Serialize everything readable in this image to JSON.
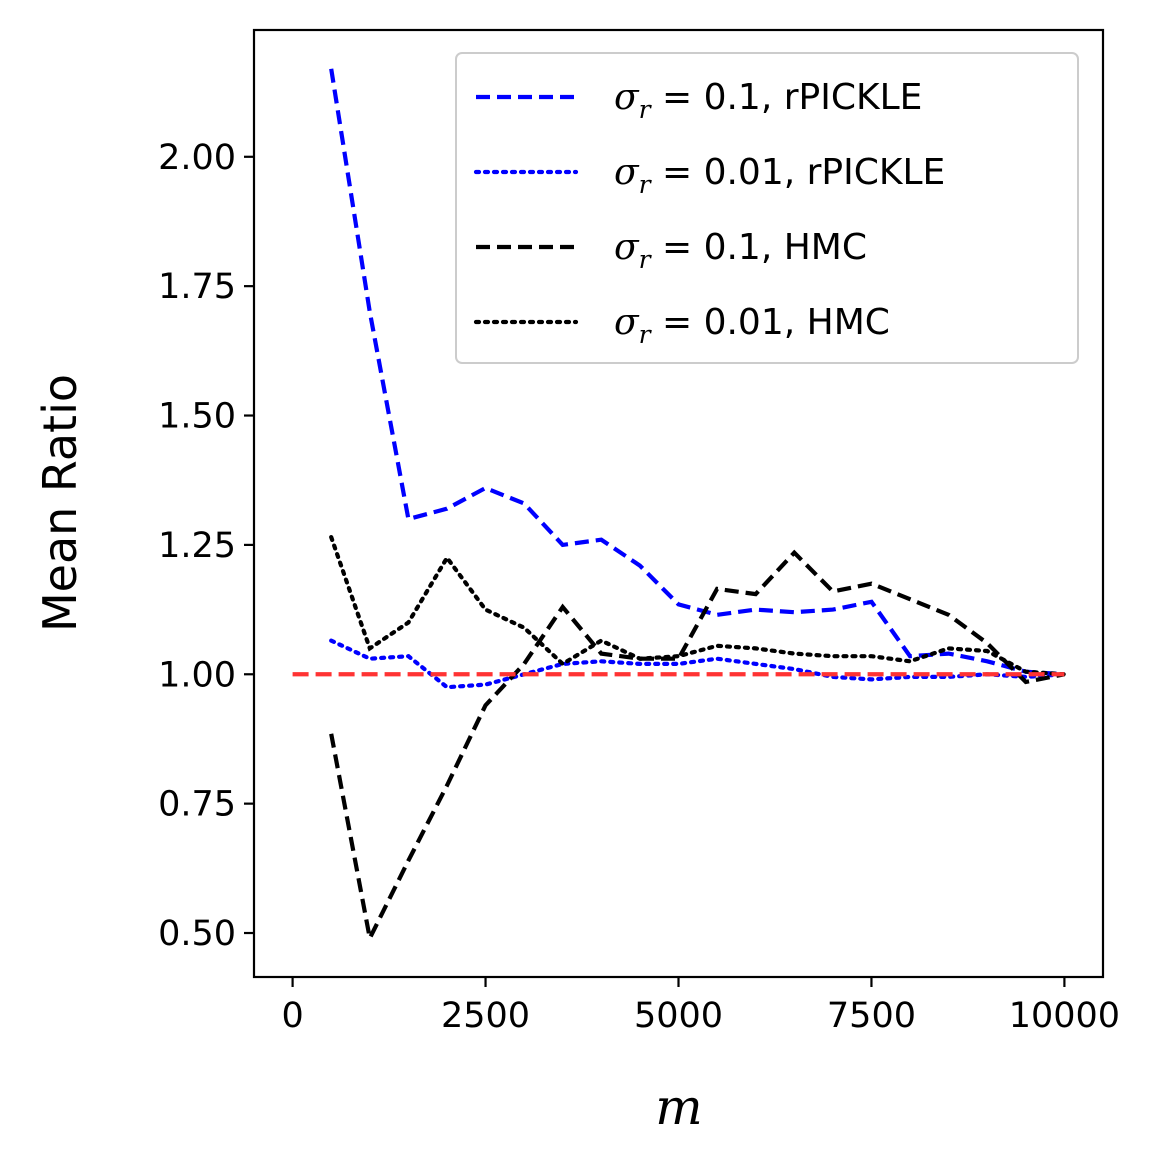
{
  "chart_data": {
    "type": "line",
    "title": "",
    "xlabel": "m",
    "ylabel": "Mean Ratio",
    "xlim": [
      -500,
      10500
    ],
    "ylim": [
      0.415,
      2.245
    ],
    "xticks": [
      0,
      2500,
      5000,
      7500,
      10000
    ],
    "xtick_labels": [
      "0",
      "2500",
      "5000",
      "7500",
      "10000"
    ],
    "yticks": [
      0.5,
      0.75,
      1.0,
      1.25,
      1.5,
      1.75,
      2.0
    ],
    "ytick_labels": [
      "0.50",
      "0.75",
      "1.00",
      "1.25",
      "1.50",
      "1.75",
      "2.00"
    ],
    "grid": false,
    "legend_position": "top-right",
    "reference_line": {
      "y": 1.0,
      "x_range": [
        0,
        10000
      ],
      "color": "#ff3333",
      "style": "dashed"
    },
    "series": [
      {
        "name": "σ_r = 0.1, rPICKLE",
        "legend": {
          "symbol": "σ",
          "sub": "r",
          "rest": " = 0.1, rPICKLE"
        },
        "color": "#0000ff",
        "style": "dashed",
        "x": [
          500,
          1000,
          1500,
          2000,
          2500,
          3000,
          3500,
          4000,
          4500,
          5000,
          5500,
          6000,
          6500,
          7000,
          7500,
          8000,
          8500,
          9000,
          9500,
          10000
        ],
        "y": [
          2.17,
          1.7,
          1.3,
          1.32,
          1.36,
          1.33,
          1.25,
          1.26,
          1.21,
          1.135,
          1.115,
          1.125,
          1.12,
          1.125,
          1.14,
          1.035,
          1.04,
          1.025,
          1.005,
          1.0
        ]
      },
      {
        "name": "σ_r = 0.01, rPICKLE",
        "legend": {
          "symbol": "σ",
          "sub": "r",
          "rest": " = 0.01, rPICKLE"
        },
        "color": "#0000ff",
        "style": "dotted",
        "x": [
          500,
          1000,
          1500,
          2000,
          2500,
          3000,
          3500,
          4000,
          4500,
          5000,
          5500,
          6000,
          6500,
          7000,
          7500,
          8000,
          8500,
          9000,
          9500,
          10000
        ],
        "y": [
          1.065,
          1.03,
          1.035,
          0.975,
          0.98,
          1.0,
          1.02,
          1.025,
          1.02,
          1.02,
          1.03,
          1.02,
          1.01,
          0.995,
          0.99,
          0.995,
          0.995,
          1.0,
          0.995,
          1.0
        ]
      },
      {
        "name": "σ_r = 0.1, HMC",
        "legend": {
          "symbol": "σ",
          "sub": "r",
          "rest": " = 0.1, HMC"
        },
        "color": "#000000",
        "style": "dashed",
        "x": [
          500,
          1000,
          1500,
          2000,
          2500,
          3000,
          3500,
          4000,
          4500,
          5000,
          5500,
          6000,
          6500,
          7000,
          7500,
          8000,
          8500,
          9000,
          9500,
          10000
        ],
        "y": [
          0.885,
          0.49,
          0.64,
          0.785,
          0.94,
          1.02,
          1.13,
          1.04,
          1.03,
          1.03,
          1.165,
          1.155,
          1.235,
          1.16,
          1.175,
          1.145,
          1.115,
          1.06,
          0.985,
          1.0
        ]
      },
      {
        "name": "σ_r = 0.01, HMC",
        "legend": {
          "symbol": "σ",
          "sub": "r",
          "rest": " = 0.01, HMC"
        },
        "color": "#000000",
        "style": "dotted",
        "x": [
          500,
          1000,
          1500,
          2000,
          2500,
          3000,
          3500,
          4000,
          4500,
          5000,
          5500,
          6000,
          6500,
          7000,
          7500,
          8000,
          8500,
          9000,
          9500,
          10000
        ],
        "y": [
          1.265,
          1.05,
          1.1,
          1.225,
          1.125,
          1.09,
          1.02,
          1.065,
          1.03,
          1.035,
          1.055,
          1.05,
          1.04,
          1.035,
          1.035,
          1.025,
          1.05,
          1.045,
          1.005,
          1.0
        ]
      }
    ]
  }
}
